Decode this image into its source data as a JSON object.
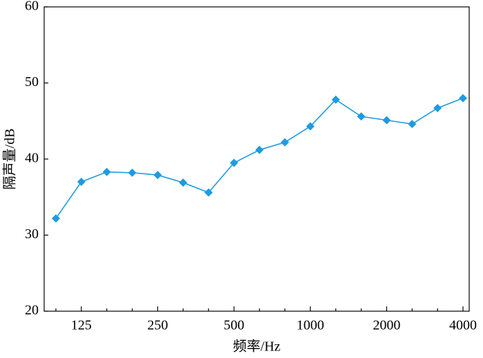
{
  "chart_data": {
    "type": "line",
    "x_label": "频率/Hz",
    "y_label": "隔声量/dB",
    "categories": [
      null,
      "125",
      null,
      null,
      "250",
      null,
      null,
      "500",
      null,
      null,
      "1000",
      null,
      null,
      "2000",
      null,
      null,
      "4000"
    ],
    "series": [
      {
        "name": null,
        "color": "#1e9be0",
        "values": [
          32.2,
          37.0,
          38.3,
          38.2,
          37.9,
          36.9,
          35.6,
          39.5,
          41.2,
          42.2,
          44.3,
          47.8,
          45.6,
          45.1,
          44.6,
          46.7,
          48.0
        ]
      }
    ],
    "ylim": [
      20,
      60
    ],
    "yticks": [
      20,
      30,
      40,
      50,
      60
    ],
    "grid": false
  }
}
